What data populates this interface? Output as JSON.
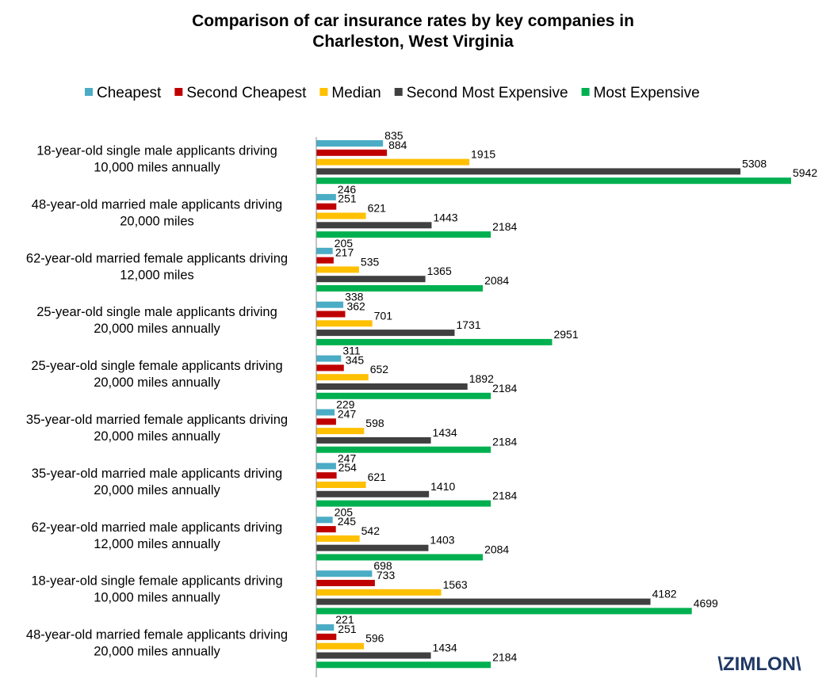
{
  "chart_data": {
    "type": "bar",
    "orientation": "horizontal",
    "title": [
      "Comparison of car insurance rates by key companies in",
      "Charleston, West Virginia"
    ],
    "categories": [
      [
        "18-year-old single male applicants driving",
        "10,000 miles annually"
      ],
      [
        "48-year-old married male applicants driving",
        "20,000 miles"
      ],
      [
        "62-year-old married female applicants driving",
        "12,000 miles"
      ],
      [
        "25-year-old single male applicants driving",
        "20,000 miles annually"
      ],
      [
        "25-year-old single female applicants driving",
        "20,000 miles annually"
      ],
      [
        "35-year-old married female applicants driving",
        "20,000 miles annually"
      ],
      [
        "35-year-old married male applicants driving",
        "20,000 miles annually"
      ],
      [
        "62-year-old married male applicants driving",
        "12,000 miles annually"
      ],
      [
        "18-year-old single female applicants driving",
        "10,000 miles annually"
      ],
      [
        "48-year-old married female applicants driving",
        "20,000 miles annually"
      ]
    ],
    "series": [
      {
        "name": "Cheapest",
        "color": "#4bacc6",
        "values": [
          835,
          246,
          205,
          338,
          311,
          229,
          247,
          205,
          698,
          221
        ]
      },
      {
        "name": "Second Cheapest",
        "color": "#c00000",
        "values": [
          884,
          251,
          217,
          362,
          345,
          247,
          254,
          245,
          733,
          251
        ]
      },
      {
        "name": "Median",
        "color": "#ffc000",
        "values": [
          1915,
          621,
          535,
          701,
          652,
          598,
          621,
          542,
          1563,
          596
        ]
      },
      {
        "name": "Second Most Expensive",
        "color": "#404040",
        "values": [
          5308,
          1443,
          1365,
          1731,
          1892,
          1434,
          1410,
          1403,
          4182,
          1434
        ]
      },
      {
        "name": "Most Expensive",
        "color": "#00b050",
        "values": [
          5942,
          2184,
          2084,
          2951,
          2184,
          2184,
          2184,
          2084,
          4699,
          2184
        ]
      }
    ],
    "logo": "\\ZIMLON\\"
  }
}
